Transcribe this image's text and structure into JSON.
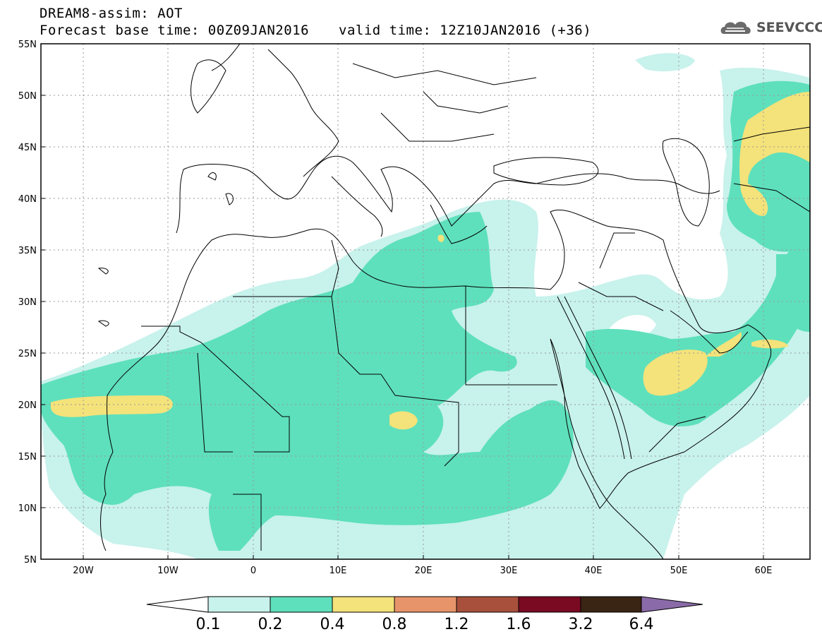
{
  "header": {
    "line1": "DREAM8-assim: AOT",
    "line2": "Forecast base time: 00Z09JAN2016",
    "valid": "valid time: 12Z10JAN2016 (+36)",
    "logo_text": "SEEVCCC"
  },
  "map": {
    "lat_labels": [
      "55N",
      "50N",
      "45N",
      "40N",
      "35N",
      "30N",
      "25N",
      "20N",
      "15N",
      "10N",
      "5N"
    ],
    "lon_labels": [
      "20W",
      "10W",
      "0",
      "10E",
      "20E",
      "30E",
      "40E",
      "50E",
      "60E"
    ],
    "colors": {
      "land_border": "#000000",
      "gridline": "#999999"
    }
  },
  "colorbar": {
    "labels": [
      "0.1",
      "0.2",
      "0.4",
      "0.8",
      "1.2",
      "1.6",
      "3.2",
      "6.4"
    ],
    "colors": [
      "#ffffff",
      "#c8f2ec",
      "#5ee0bc",
      "#f4e27a",
      "#e8946a",
      "#a8503c",
      "#7a0a22",
      "#3a2414",
      "#8a6aa8"
    ]
  }
}
